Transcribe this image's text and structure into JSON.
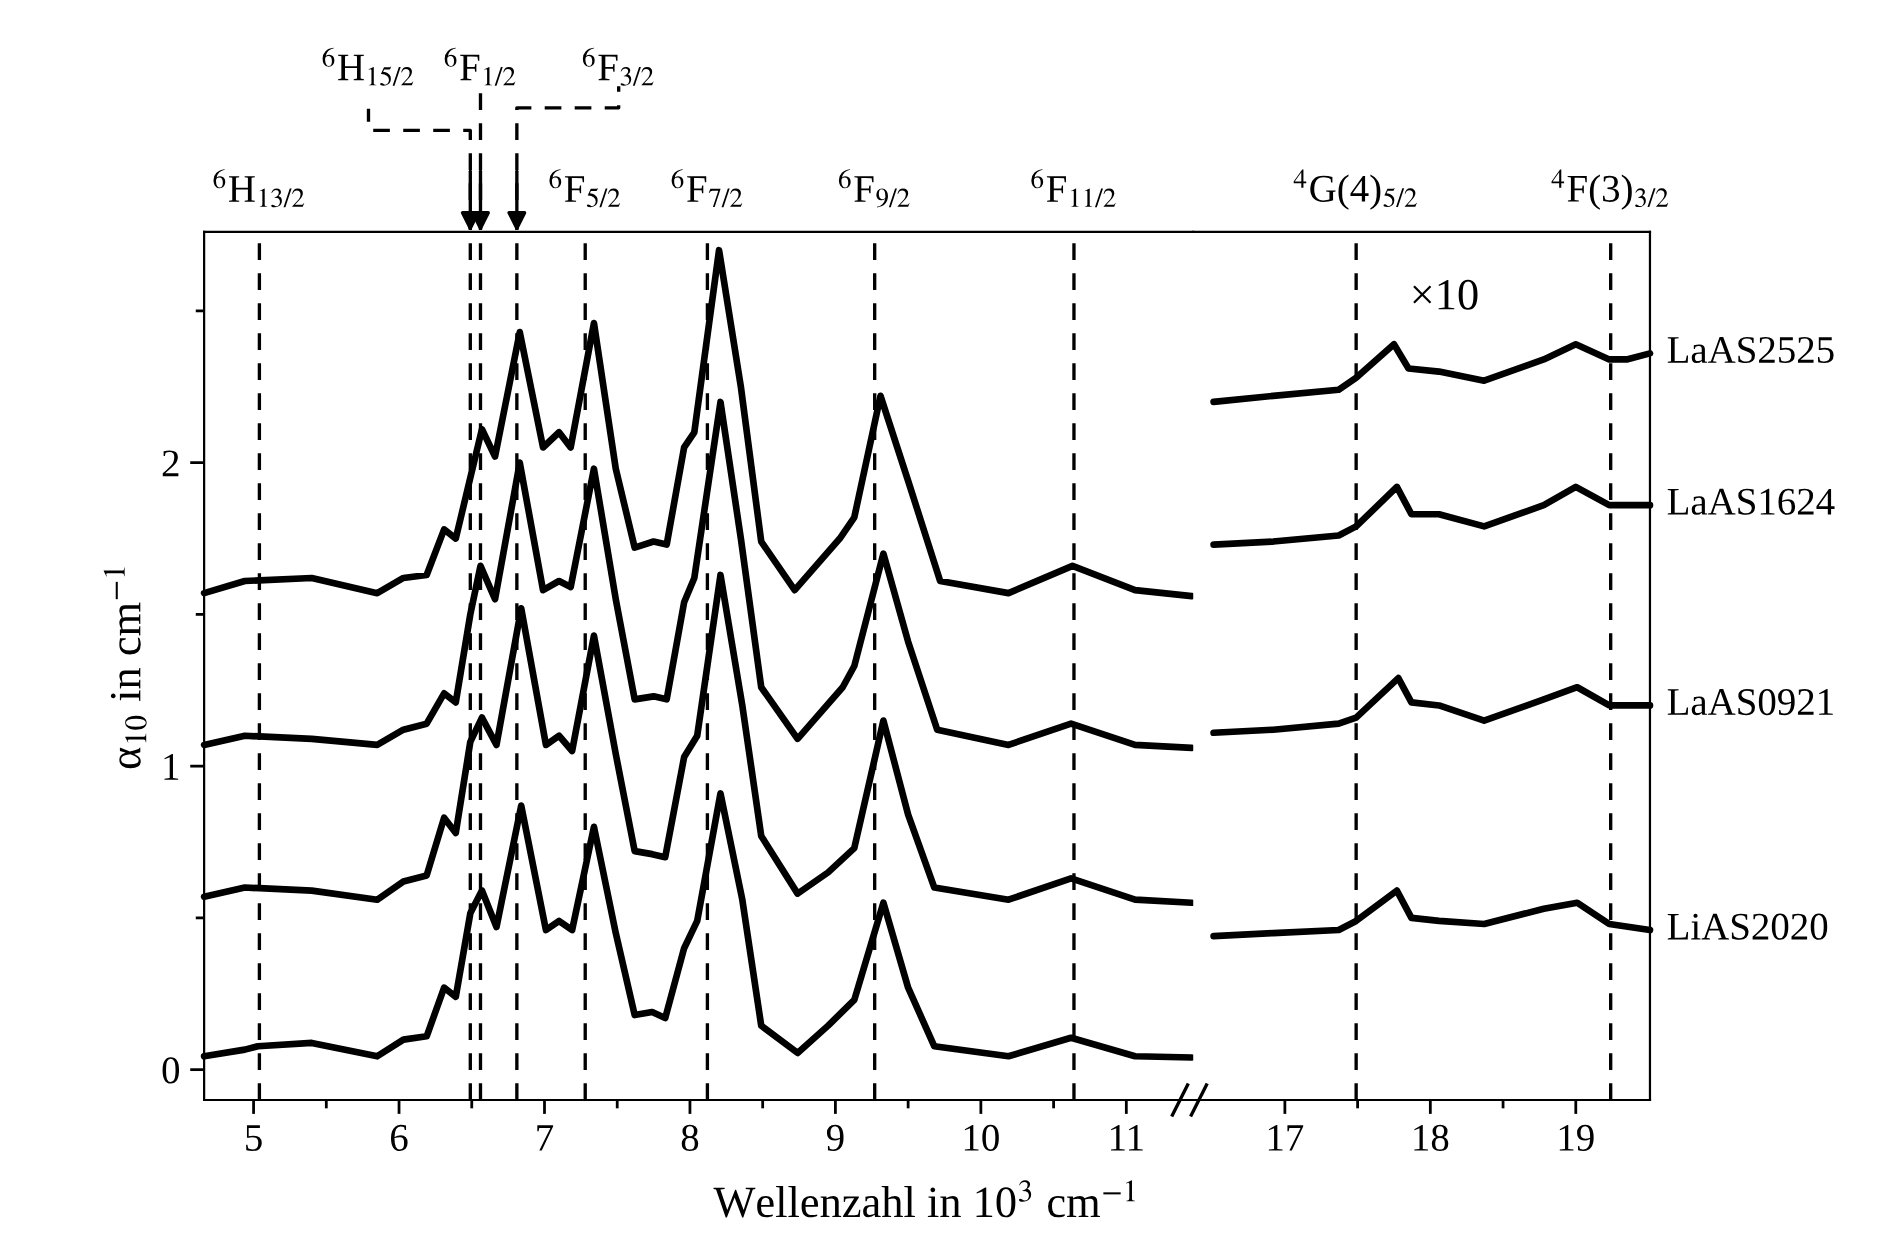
{
  "chart_data": [
    {
      "type": "line",
      "xlabel": "Wellenzahl in 10$^{3}$ cm$^{−1}$",
      "ylabel": "α$_{10}$ in cm$^{−1}$",
      "xlim": [
        4.66,
        11.46
      ],
      "ylim": [
        -0.1,
        2.76
      ],
      "xticks": [
        5,
        {
          "value": 5.5,
          "label": null
        },
        6,
        {
          "value": 6.5,
          "label": null
        },
        7,
        {
          "value": 7.5,
          "label": null
        },
        8,
        {
          "value": 8.5,
          "label": null
        },
        9,
        {
          "value": 9.5,
          "label": null
        },
        10,
        {
          "value": 10.5,
          "label": null
        },
        11
      ],
      "yticks": [
        0,
        {
          "value": 0.5,
          "label": null
        },
        1,
        {
          "value": 1.5,
          "label": null
        },
        2,
        {
          "value": 2.5,
          "label": null
        }
      ],
      "grid": false,
      "legend": false,
      "series": [
        {
          "color": "#000000",
          "x": [
            4.66,
            4.94,
            5.03,
            5.4,
            5.85,
            6.03,
            6.19,
            6.31,
            6.39,
            6.49,
            6.57,
            6.67,
            6.84,
            7.01,
            7.1,
            7.19,
            7.34,
            7.49,
            7.62,
            7.74,
            7.83,
            7.96,
            8.05,
            8.21,
            8.36,
            8.49,
            8.74,
            8.95,
            9.13,
            9.33,
            9.5,
            9.68,
            10.19,
            10.62,
            11.06,
            11.45
          ],
          "values": [
            0.044,
            0.066,
            0.077,
            0.088,
            0.044,
            0.099,
            0.11,
            0.27,
            0.24,
            0.515,
            0.59,
            0.47,
            0.87,
            0.46,
            0.49,
            0.46,
            0.8,
            0.45,
            0.18,
            0.19,
            0.17,
            0.4,
            0.49,
            0.91,
            0.56,
            0.145,
            0.055,
            0.145,
            0.23,
            0.55,
            0.27,
            0.077,
            0.044,
            0.105,
            0.044,
            0.04
          ]
        },
        {
          "color": "#000000",
          "x": [
            4.66,
            4.94,
            5.4,
            5.85,
            6.03,
            6.19,
            6.31,
            6.39,
            6.49,
            6.57,
            6.67,
            6.84,
            7.01,
            7.1,
            7.19,
            7.34,
            7.49,
            7.62,
            7.74,
            7.83,
            7.96,
            8.05,
            8.21,
            8.36,
            8.49,
            8.74,
            8.95,
            9.13,
            9.33,
            9.5,
            9.68,
            10.19,
            10.62,
            11.06,
            11.45
          ],
          "values": [
            0.57,
            0.6,
            0.59,
            0.56,
            0.62,
            0.64,
            0.83,
            0.78,
            1.08,
            1.16,
            1.07,
            1.52,
            1.07,
            1.1,
            1.05,
            1.43,
            1.04,
            0.72,
            0.71,
            0.7,
            1.03,
            1.1,
            1.63,
            1.2,
            0.77,
            0.58,
            0.65,
            0.73,
            1.15,
            0.84,
            0.6,
            0.56,
            0.63,
            0.56,
            0.55
          ]
        },
        {
          "color": "#000000",
          "x": [
            4.66,
            4.94,
            5.4,
            5.85,
            6.03,
            6.19,
            6.31,
            6.39,
            6.49,
            6.56,
            6.66,
            6.83,
            6.99,
            7.1,
            7.18,
            7.34,
            7.49,
            7.62,
            7.75,
            7.84,
            7.96,
            8.03,
            8.21,
            8.35,
            8.49,
            8.74,
            9.05,
            9.13,
            9.33,
            9.5,
            9.7,
            10.19,
            10.62,
            11.06,
            11.45
          ],
          "values": [
            1.07,
            1.1,
            1.09,
            1.07,
            1.12,
            1.14,
            1.24,
            1.21,
            1.5,
            1.66,
            1.55,
            2.0,
            1.58,
            1.61,
            1.59,
            1.98,
            1.55,
            1.22,
            1.23,
            1.22,
            1.54,
            1.62,
            2.2,
            1.75,
            1.26,
            1.09,
            1.26,
            1.33,
            1.7,
            1.41,
            1.12,
            1.07,
            1.14,
            1.07,
            1.06
          ]
        },
        {
          "color": "#000000",
          "x": [
            4.66,
            4.94,
            5.4,
            5.85,
            6.03,
            6.19,
            6.31,
            6.39,
            6.49,
            6.57,
            6.66,
            6.83,
            6.99,
            7.1,
            7.18,
            7.34,
            7.49,
            7.62,
            7.75,
            7.84,
            7.96,
            8.03,
            8.2,
            8.35,
            8.49,
            8.72,
            9.03,
            9.13,
            9.31,
            9.5,
            9.72,
            10.19,
            10.63,
            11.06,
            11.45
          ],
          "values": [
            1.57,
            1.61,
            1.62,
            1.57,
            1.62,
            1.63,
            1.78,
            1.75,
            1.95,
            2.11,
            2.02,
            2.43,
            2.05,
            2.1,
            2.05,
            2.46,
            1.98,
            1.72,
            1.74,
            1.73,
            2.05,
            2.1,
            2.7,
            2.25,
            1.74,
            1.58,
            1.75,
            1.82,
            2.22,
            1.94,
            1.61,
            1.57,
            1.66,
            1.58,
            1.56
          ]
        }
      ],
      "ref_lines": [
        {
          "axis": "x",
          "value": 5.04,
          "label": "$^{6}$H$_{13/2}$",
          "color": "#000000",
          "line_style": "dashed"
        },
        {
          "axis": "x",
          "value": 6.49,
          "label": "$^{6}$H$_{15/2}$",
          "color": "#000000",
          "line_style": "dashed"
        },
        {
          "axis": "x",
          "value": 6.56,
          "label": "$^{6}$F$_{1/2}$",
          "color": "#000000",
          "line_style": "dashed"
        },
        {
          "axis": "x",
          "value": 6.81,
          "label": "$^{6}$F$_{3/2}$",
          "color": "#000000",
          "line_style": "dashed"
        },
        {
          "axis": "x",
          "value": 7.28,
          "label": "$^{6}$F$_{5/2}$",
          "color": "#000000",
          "line_style": "dashed"
        },
        {
          "axis": "x",
          "value": 8.12,
          "label": "$^{6}$F$_{7/2}$",
          "color": "#000000",
          "line_style": "dashed"
        },
        {
          "axis": "x",
          "value": 9.27,
          "label": "$^{6}$F$_{9/2}$",
          "color": "#000000",
          "line_style": "dashed"
        },
        {
          "axis": "x",
          "value": 10.64,
          "label": "$^{6}$F$_{11/2}$",
          "color": "#000000",
          "line_style": "dashed"
        }
      ]
    },
    {
      "type": "line",
      "xlim": [
        16.37,
        19.51
      ],
      "ylim": [
        -0.1,
        2.76
      ],
      "xticks": [
        17,
        {
          "value": 17.5,
          "label": null
        },
        18,
        {
          "value": 18.5,
          "label": null
        },
        19
      ],
      "tick_labels": "x",
      "grid": false,
      "legend": false,
      "annotations": [
        "×10"
      ],
      "series": [
        {
          "name": "LaAS2525",
          "color": "#000000",
          "x": [
            16.51,
            16.92,
            17.37,
            17.49,
            17.75,
            17.85,
            18.06,
            18.37,
            18.78,
            19.0,
            19.23,
            19.35,
            19.51
          ],
          "values": [
            2.2,
            2.22,
            2.24,
            2.28,
            2.39,
            2.31,
            2.3,
            2.27,
            2.34,
            2.39,
            2.34,
            2.34,
            2.36
          ]
        },
        {
          "name": "LaAS1624",
          "color": "#000000",
          "x": [
            16.51,
            16.92,
            17.37,
            17.49,
            17.77,
            17.87,
            18.06,
            18.37,
            18.78,
            19.0,
            19.23,
            19.51
          ],
          "values": [
            1.73,
            1.74,
            1.76,
            1.79,
            1.92,
            1.83,
            1.83,
            1.79,
            1.86,
            1.92,
            1.86,
            1.86
          ]
        },
        {
          "name": "LaAS0921",
          "color": "#000000",
          "x": [
            16.51,
            16.92,
            17.37,
            17.49,
            17.78,
            17.87,
            18.06,
            18.37,
            18.78,
            19.01,
            19.23,
            19.51
          ],
          "values": [
            1.11,
            1.12,
            1.14,
            1.16,
            1.29,
            1.21,
            1.2,
            1.15,
            1.22,
            1.26,
            1.2,
            1.2
          ]
        },
        {
          "name": "LiAS2020",
          "color": "#000000",
          "x": [
            16.51,
            16.92,
            17.37,
            17.49,
            17.77,
            17.87,
            18.06,
            18.37,
            18.78,
            19.01,
            19.23,
            19.51
          ],
          "values": [
            0.44,
            0.45,
            0.46,
            0.49,
            0.59,
            0.5,
            0.49,
            0.48,
            0.53,
            0.55,
            0.48,
            0.46
          ]
        }
      ],
      "ref_lines": [
        {
          "axis": "x",
          "value": 17.49,
          "label": "$^{4}$G(4)$_{5/2}$",
          "color": "#000000",
          "line_style": "dashed"
        },
        {
          "axis": "x",
          "value": 19.24,
          "label": "$^{4}$F(3)$_{3/2}$",
          "color": "#000000",
          "line_style": "dashed"
        }
      ]
    }
  ]
}
